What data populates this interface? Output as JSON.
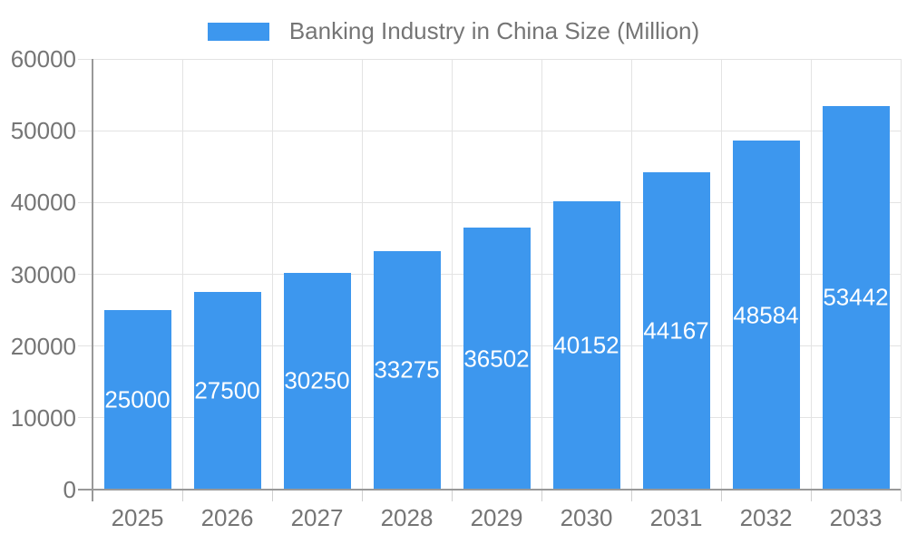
{
  "chart_data": {
    "type": "bar",
    "legend": [
      {
        "label": "Banking Industry in China Size (Million)"
      }
    ],
    "legend_position": "top-center",
    "categories": [
      "2025",
      "2026",
      "2027",
      "2028",
      "2029",
      "2030",
      "2031",
      "2032",
      "2033"
    ],
    "series": [
      {
        "name": "Banking Industry in China Size (Million)",
        "values": [
          25000,
          27500,
          30250,
          33275,
          36502,
          40152,
          44167,
          48584,
          53442
        ]
      }
    ],
    "xlabel": "",
    "ylabel": "",
    "ylim": [
      0,
      60000
    ],
    "yticks": [
      0,
      10000,
      20000,
      30000,
      40000,
      50000,
      60000
    ],
    "grid": true,
    "bar_value_labels_shown": true
  },
  "colors": {
    "bar": "#3D97EE",
    "bar_label": "#FFFFFF",
    "axis_text": "#757575",
    "grid": "#E3E3E3",
    "tick": "#D0D0D0",
    "axis_line": "#999999",
    "background": "#FFFFFF"
  }
}
